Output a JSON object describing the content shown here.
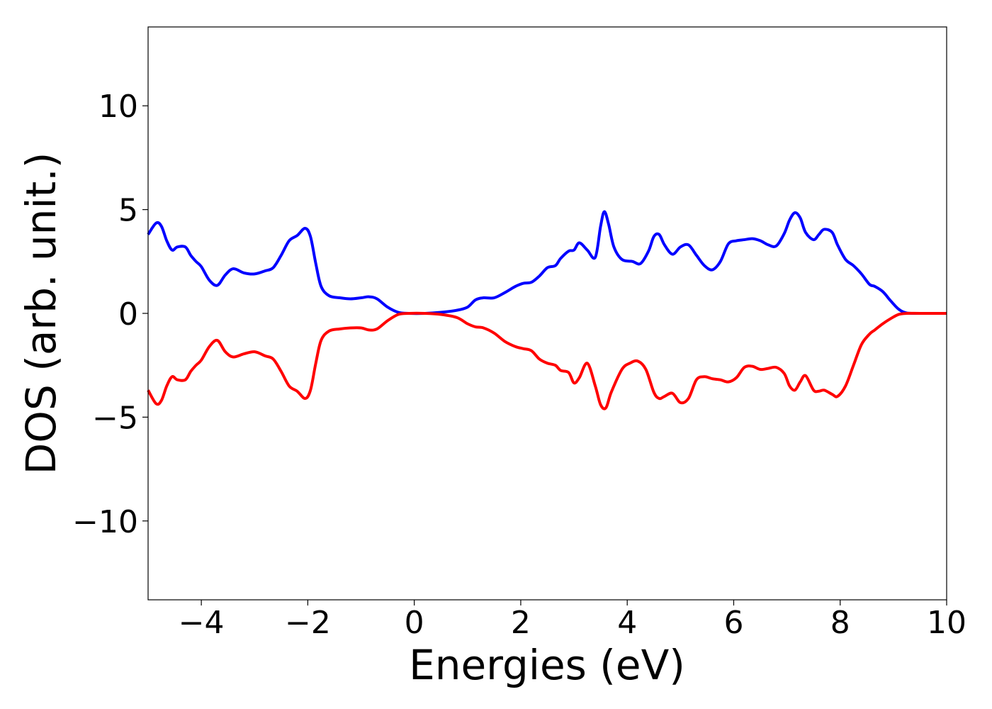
{
  "chart_data": {
    "type": "line",
    "title": "",
    "xlabel": "Energies (eV)",
    "ylabel": "DOS (arb. unit.)",
    "xlim": [
      -5,
      10
    ],
    "ylim": [
      -13.8,
      13.8
    ],
    "grid": false,
    "legend": "none",
    "xticks": [
      -4,
      -2,
      0,
      2,
      4,
      6,
      8,
      10
    ],
    "yticks": [
      -10,
      -5,
      0,
      5,
      10
    ],
    "xtick_labels": [
      "−4",
      "−2",
      "0",
      "2",
      "4",
      "6",
      "8",
      "10"
    ],
    "ytick_labels": [
      "−10",
      "−5",
      "0",
      "5",
      "10"
    ],
    "series": [
      {
        "color": "#0000ff",
        "x": [
          -5.0,
          -4.85,
          -4.75,
          -4.65,
          -4.55,
          -4.45,
          -4.3,
          -4.2,
          -4.1,
          -4.0,
          -3.85,
          -3.7,
          -3.55,
          -3.4,
          -3.2,
          -3.0,
          -2.8,
          -2.65,
          -2.5,
          -2.35,
          -2.2,
          -2.05,
          -1.95,
          -1.85,
          -1.75,
          -1.6,
          -1.4,
          -1.2,
          -1.0,
          -0.85,
          -0.7,
          -0.5,
          -0.3,
          -0.1,
          0.2,
          0.5,
          0.8,
          1.0,
          1.15,
          1.3,
          1.5,
          1.7,
          1.9,
          2.05,
          2.2,
          2.35,
          2.5,
          2.65,
          2.75,
          2.9,
          3.0,
          3.1,
          3.25,
          3.4,
          3.5,
          3.57,
          3.65,
          3.75,
          3.9,
          4.1,
          4.25,
          4.4,
          4.5,
          4.6,
          4.7,
          4.85,
          5.0,
          5.15,
          5.3,
          5.45,
          5.6,
          5.75,
          5.9,
          6.05,
          6.2,
          6.35,
          6.5,
          6.65,
          6.8,
          6.95,
          7.05,
          7.15,
          7.25,
          7.35,
          7.5,
          7.6,
          7.7,
          7.85,
          7.95,
          8.1,
          8.25,
          8.4,
          8.55,
          8.65,
          8.8,
          8.95,
          9.1,
          9.25,
          9.5,
          10.0
        ],
        "y": [
          3.8,
          4.35,
          4.2,
          3.5,
          3.05,
          3.2,
          3.2,
          2.8,
          2.5,
          2.25,
          1.6,
          1.35,
          1.85,
          2.15,
          1.95,
          1.9,
          2.05,
          2.2,
          2.8,
          3.5,
          3.75,
          4.1,
          3.7,
          2.4,
          1.3,
          0.85,
          0.75,
          0.7,
          0.75,
          0.8,
          0.7,
          0.3,
          0.05,
          0.0,
          0.0,
          0.05,
          0.15,
          0.3,
          0.65,
          0.75,
          0.75,
          1.0,
          1.3,
          1.45,
          1.5,
          1.8,
          2.2,
          2.3,
          2.65,
          3.0,
          3.05,
          3.4,
          3.05,
          2.7,
          4.2,
          4.9,
          4.3,
          3.2,
          2.6,
          2.5,
          2.4,
          3.0,
          3.7,
          3.8,
          3.3,
          2.85,
          3.2,
          3.3,
          2.8,
          2.3,
          2.1,
          2.5,
          3.35,
          3.5,
          3.55,
          3.6,
          3.5,
          3.3,
          3.25,
          3.85,
          4.5,
          4.85,
          4.6,
          3.9,
          3.55,
          3.8,
          4.05,
          3.9,
          3.3,
          2.6,
          2.3,
          1.9,
          1.4,
          1.3,
          1.05,
          0.6,
          0.2,
          0.02,
          0.0,
          0.0
        ]
      },
      {
        "color": "#ff0000",
        "x": [
          -5.0,
          -4.85,
          -4.75,
          -4.65,
          -4.55,
          -4.45,
          -4.3,
          -4.2,
          -4.1,
          -4.0,
          -3.85,
          -3.7,
          -3.55,
          -3.4,
          -3.2,
          -3.0,
          -2.8,
          -2.65,
          -2.5,
          -2.35,
          -2.2,
          -2.05,
          -1.95,
          -1.85,
          -1.75,
          -1.6,
          -1.4,
          -1.2,
          -1.0,
          -0.85,
          -0.7,
          -0.5,
          -0.3,
          -0.1,
          0.2,
          0.5,
          0.8,
          1.0,
          1.15,
          1.3,
          1.5,
          1.7,
          1.9,
          2.05,
          2.2,
          2.35,
          2.5,
          2.65,
          2.75,
          2.9,
          3.0,
          3.1,
          3.25,
          3.4,
          3.5,
          3.6,
          3.7,
          3.9,
          4.05,
          4.2,
          4.35,
          4.5,
          4.6,
          4.7,
          4.85,
          5.0,
          5.15,
          5.3,
          5.45,
          5.6,
          5.75,
          5.9,
          6.05,
          6.2,
          6.35,
          6.5,
          6.65,
          6.8,
          6.95,
          7.05,
          7.15,
          7.25,
          7.35,
          7.5,
          7.6,
          7.7,
          7.85,
          7.95,
          8.1,
          8.25,
          8.4,
          8.55,
          8.65,
          8.8,
          8.95,
          9.1,
          9.25,
          9.5,
          10.0
        ],
        "y": [
          -3.7,
          -4.35,
          -4.2,
          -3.5,
          -3.05,
          -3.2,
          -3.2,
          -2.8,
          -2.5,
          -2.25,
          -1.6,
          -1.3,
          -1.85,
          -2.1,
          -1.95,
          -1.85,
          -2.05,
          -2.2,
          -2.8,
          -3.5,
          -3.75,
          -4.1,
          -3.7,
          -2.4,
          -1.3,
          -0.85,
          -0.75,
          -0.7,
          -0.7,
          -0.8,
          -0.75,
          -0.35,
          -0.05,
          0.0,
          0.0,
          -0.05,
          -0.2,
          -0.5,
          -0.65,
          -0.7,
          -0.95,
          -1.35,
          -1.6,
          -1.7,
          -1.8,
          -2.2,
          -2.4,
          -2.5,
          -2.75,
          -2.85,
          -3.35,
          -3.1,
          -2.4,
          -3.5,
          -4.4,
          -4.55,
          -3.8,
          -2.7,
          -2.4,
          -2.3,
          -2.7,
          -3.8,
          -4.1,
          -4.0,
          -3.85,
          -4.3,
          -4.1,
          -3.2,
          -3.05,
          -3.15,
          -3.2,
          -3.3,
          -3.1,
          -2.6,
          -2.55,
          -2.7,
          -2.65,
          -2.6,
          -2.9,
          -3.5,
          -3.7,
          -3.3,
          -3.0,
          -3.7,
          -3.75,
          -3.7,
          -3.9,
          -4.0,
          -3.5,
          -2.5,
          -1.5,
          -1.0,
          -0.8,
          -0.5,
          -0.25,
          -0.05,
          0.0,
          0.0,
          0.0
        ]
      }
    ]
  }
}
